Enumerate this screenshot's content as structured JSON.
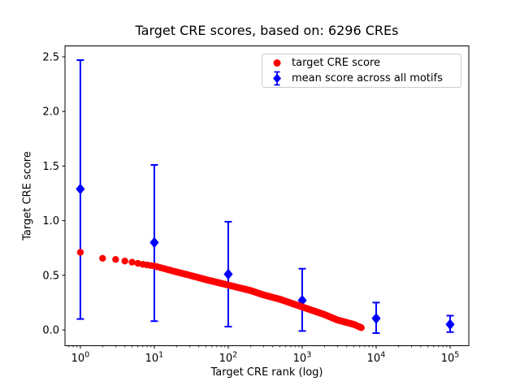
{
  "figure": {
    "title": "Target CRE scores, based on: 6296 CREs",
    "xlabel": "Target CRE rank (log)",
    "ylabel": "Target CRE score"
  },
  "legend": {
    "position": "upper right",
    "items": [
      {
        "label": "target CRE score",
        "marker": "circle",
        "color": "#ff0000"
      },
      {
        "label": "mean score across all motifs",
        "marker": "diamond-errorbar",
        "color": "#0000ff"
      }
    ]
  },
  "chart_data": {
    "type": "scatter",
    "title": "Target CRE scores, based on: 6296 CREs",
    "xlabel": "Target CRE rank (log)",
    "ylabel": "Target CRE score",
    "x_scale": "log",
    "grid": false,
    "xlim": [
      0.62,
      179000
    ],
    "ylim": [
      -0.145,
      2.6
    ],
    "x_tick_base": 10,
    "x_tick_exponents": [
      0,
      1,
      2,
      3,
      4,
      5
    ],
    "y_ticks": [
      0.0,
      0.5,
      1.0,
      1.5,
      2.0,
      2.5
    ],
    "series": [
      {
        "name": "target CRE score",
        "type": "scatter",
        "marker": "circle",
        "color": "#ff0000",
        "n_total_points": 6296,
        "anchor_points": [
          [
            1,
            0.71
          ],
          [
            2,
            0.655
          ],
          [
            3,
            0.645
          ],
          [
            4,
            0.63
          ],
          [
            5,
            0.62
          ],
          [
            7,
            0.6
          ],
          [
            10,
            0.585
          ],
          [
            20,
            0.53
          ],
          [
            30,
            0.5
          ],
          [
            50,
            0.46
          ],
          [
            100,
            0.41
          ],
          [
            200,
            0.36
          ],
          [
            300,
            0.32
          ],
          [
            500,
            0.28
          ],
          [
            1000,
            0.21
          ],
          [
            2000,
            0.14
          ],
          [
            3000,
            0.09
          ],
          [
            5000,
            0.05
          ],
          [
            6296,
            0.02
          ]
        ]
      },
      {
        "name": "mean score across all motifs",
        "type": "errorbar",
        "marker": "diamond",
        "color": "#0000ff",
        "x": [
          1,
          10,
          100,
          1000,
          10000,
          100000
        ],
        "y": [
          1.29,
          0.8,
          0.51,
          0.27,
          0.105,
          0.05
        ],
        "err_bottom": [
          0.1,
          0.08,
          0.03,
          -0.01,
          -0.03,
          -0.02
        ],
        "err_top": [
          2.47,
          1.51,
          0.99,
          0.56,
          0.25,
          0.13
        ]
      }
    ]
  }
}
